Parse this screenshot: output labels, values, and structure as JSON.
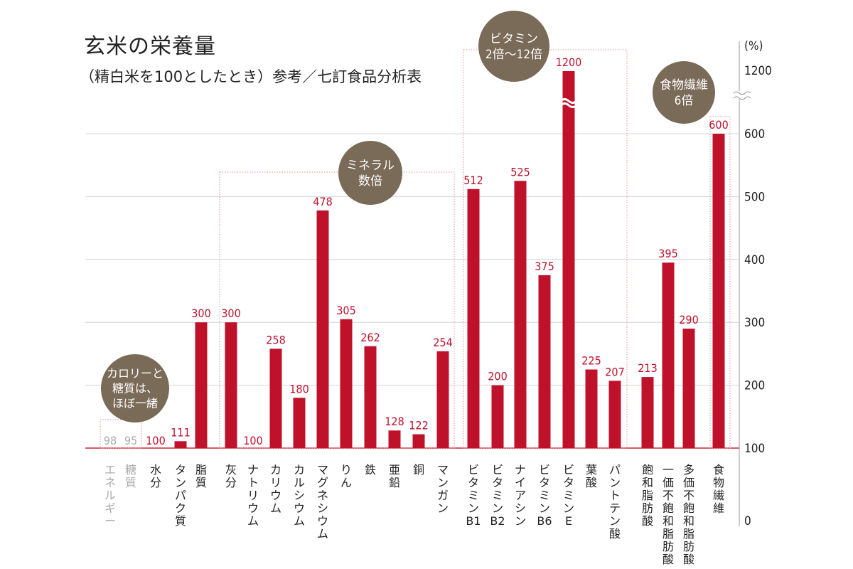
{
  "title": "玄米の栄養量",
  "subtitle": "（精白米を100としたとき）参考／七訂食品分析表",
  "colors": {
    "bar": "#c0112b",
    "label": "#c0112b",
    "muted": "#aaaaaa",
    "bubble": "#7a6a58",
    "grid": "#d4d4d4",
    "text": "#222222"
  },
  "chart_data": {
    "type": "bar",
    "title": "玄米の栄養量",
    "subtitle": "（精白米を100としたとき）参考／七訂食品分析表",
    "ylabel": "(%)",
    "ylim": [
      0,
      1200
    ],
    "baseline": 100,
    "axis_break": "between 600 and 1200",
    "y_ticks": [
      "0",
      "100",
      "200",
      "300",
      "400",
      "500",
      "600",
      "1200"
    ],
    "categories": [
      "エネルギー",
      "糖質",
      "水分",
      "タンパク質",
      "脂質",
      "灰分",
      "ナトリウム",
      "カリウム",
      "カルシウム",
      "マグネシウム",
      "りん",
      "鉄",
      "亜鉛",
      "銅",
      "マンガン",
      "ビタミンB1",
      "ビタミンB2",
      "ナイアシン",
      "ビタミンB6",
      "ビタミンE",
      "葉酸",
      "パントテン酸",
      "飽和脂肪酸",
      "一価不飽和脂肪酸",
      "多価不飽和脂肪酸",
      "食物繊維"
    ],
    "category_lines": [
      [
        "エネルギー"
      ],
      [
        "糖質"
      ],
      [
        "水分"
      ],
      [
        "タンパク質"
      ],
      [
        "脂質"
      ],
      [
        "灰分"
      ],
      [
        "ナトリウム"
      ],
      [
        "カリウム"
      ],
      [
        "カルシウム"
      ],
      [
        "マグネシウム"
      ],
      [
        "りん"
      ],
      [
        "鉄"
      ],
      [
        "亜鉛"
      ],
      [
        "銅"
      ],
      [
        "マンガン"
      ],
      [
        "ビタミン",
        "B1"
      ],
      [
        "ビタミン",
        "B2"
      ],
      [
        "ナイアシン"
      ],
      [
        "ビタミン",
        "B6"
      ],
      [
        "ビタミン",
        "E"
      ],
      [
        "葉酸"
      ],
      [
        "パントテン酸"
      ],
      [
        "飽和脂肪酸"
      ],
      [
        "一価不飽和脂肪酸"
      ],
      [
        "多価不飽和脂肪酸"
      ],
      [
        "食物繊維"
      ]
    ],
    "values": [
      98,
      95,
      100,
      111,
      300,
      300,
      100,
      258,
      180,
      478,
      305,
      262,
      128,
      122,
      254,
      512,
      200,
      525,
      375,
      1200,
      225,
      207,
      213,
      395,
      290,
      600
    ],
    "value_labels": [
      "98",
      "95",
      "100",
      "111",
      "300",
      "300",
      "100",
      "258",
      "180",
      "478",
      "305",
      "262",
      "128",
      "122",
      "254",
      "512",
      "200",
      "525",
      "375",
      "1200",
      "225",
      "207",
      "213",
      "395",
      "290",
      "600"
    ],
    "muted_categories": [
      0,
      1
    ],
    "groups": [
      {
        "name": "calorie",
        "lines": [
          "カロリーと",
          "糖質は、",
          "ほぼ一緒"
        ],
        "range": [
          0,
          1
        ]
      },
      {
        "name": "mineral",
        "lines": [
          "ミネラル",
          "数倍"
        ],
        "range": [
          5,
          14
        ]
      },
      {
        "name": "vitamin",
        "lines": [
          "ビタミン",
          "2倍〜12倍"
        ],
        "range": [
          15,
          21
        ]
      },
      {
        "name": "fiber",
        "lines": [
          "食物繊維",
          "6倍"
        ],
        "range": [
          25,
          25
        ]
      }
    ]
  }
}
